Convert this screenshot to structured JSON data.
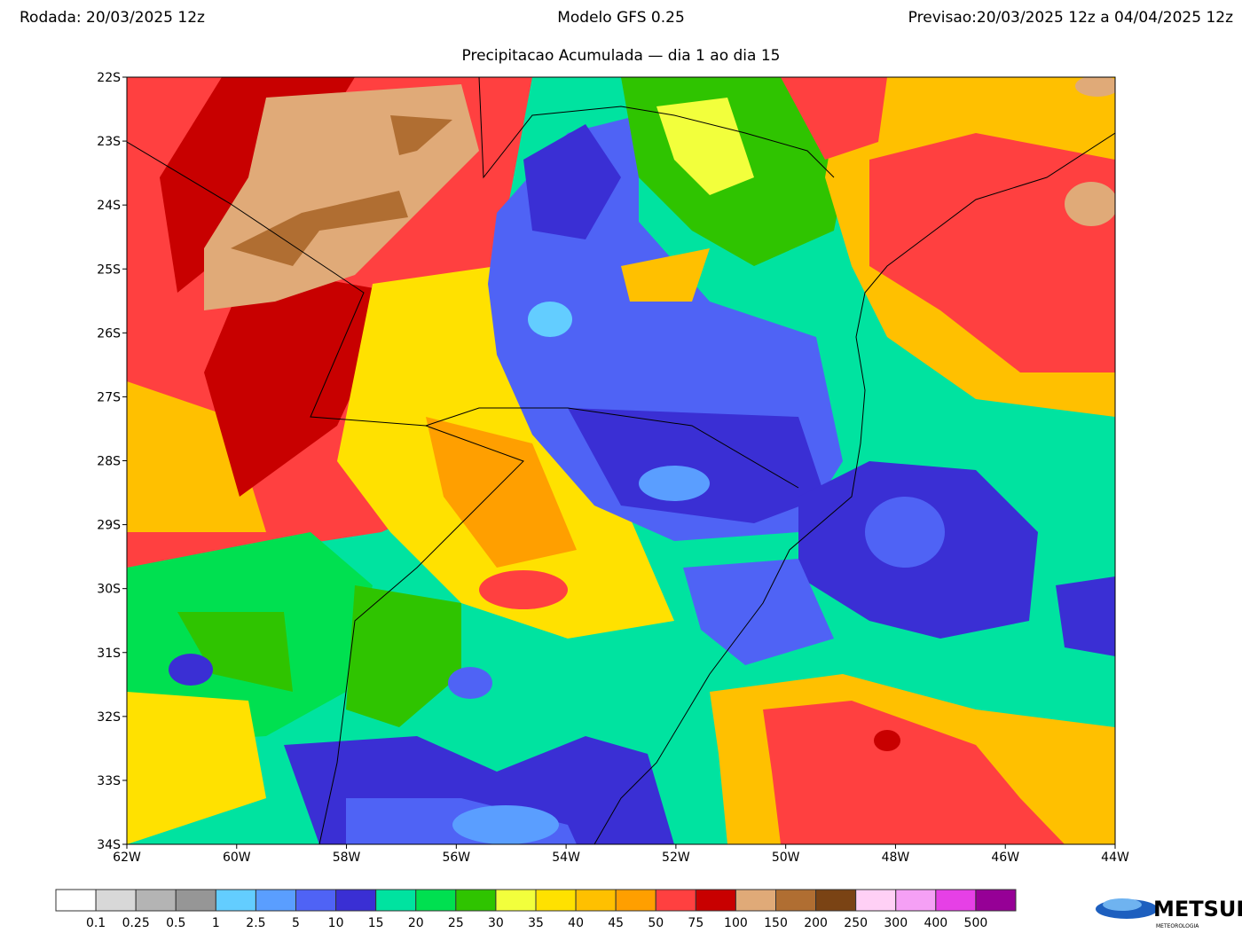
{
  "header": {
    "run": "Rodada: 20/03/2025 12z",
    "model": "Modelo GFS 0.25",
    "forecast": "Previsao:20/03/2025 12z a 04/04/2025 12z",
    "subtitle": "Precipitacao Acumulada — dia 1 ao dia 15"
  },
  "map": {
    "lon_range": [
      -62,
      -44
    ],
    "lat_range": [
      -22,
      -34
    ],
    "lon_ticks": [
      {
        "value": -62,
        "label": "62W"
      },
      {
        "value": -60,
        "label": "60W"
      },
      {
        "value": -58,
        "label": "58W"
      },
      {
        "value": -56,
        "label": "56W"
      },
      {
        "value": -54,
        "label": "54W"
      },
      {
        "value": -52,
        "label": "52W"
      },
      {
        "value": -50,
        "label": "50W"
      },
      {
        "value": -48,
        "label": "48W"
      },
      {
        "value": -46,
        "label": "46W"
      },
      {
        "value": -44,
        "label": "44W"
      }
    ],
    "lat_ticks": [
      {
        "value": -22,
        "label": "22S"
      },
      {
        "value": -23,
        "label": "23S"
      },
      {
        "value": -24,
        "label": "24S"
      },
      {
        "value": -25,
        "label": "25S"
      },
      {
        "value": -26,
        "label": "26S"
      },
      {
        "value": -27,
        "label": "27S"
      },
      {
        "value": -28,
        "label": "28S"
      },
      {
        "value": -29,
        "label": "29S"
      },
      {
        "value": -30,
        "label": "30S"
      },
      {
        "value": -31,
        "label": "31S"
      },
      {
        "value": -32,
        "label": "32S"
      },
      {
        "value": -33,
        "label": "33S"
      },
      {
        "value": -34,
        "label": "34S"
      }
    ]
  },
  "colorbar": {
    "levels": [
      0.1,
      0.25,
      0.5,
      1,
      2.5,
      5,
      10,
      15,
      20,
      25,
      30,
      35,
      40,
      45,
      50,
      75,
      100,
      150,
      200,
      250,
      300,
      400,
      500
    ],
    "colors": [
      "#ffffff",
      "#d8d8d8",
      "#b4b4b4",
      "#969696",
      "#63cdff",
      "#5a9eff",
      "#4f63f5",
      "#3a2fd4",
      "#00e3a0",
      "#00e050",
      "#2fc400",
      "#f2ff3c",
      "#ffe100",
      "#ffc000",
      "#ff9f00",
      "#ff4040",
      "#c80000",
      "#e0aa78",
      "#b06e32",
      "#7a4314",
      "#ffd0f5",
      "#f5a0f5",
      "#e640e6",
      "#960096"
    ]
  },
  "logo": {
    "name": "METSUL",
    "tagline": "METEOROLOGIA"
  }
}
